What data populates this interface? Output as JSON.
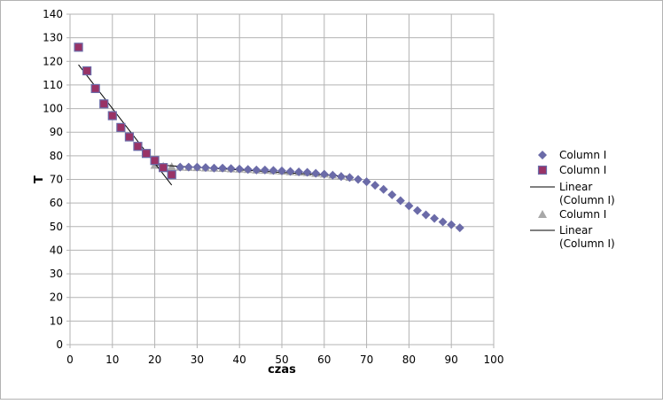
{
  "chart_data": {
    "type": "scatter",
    "xlabel": "czas",
    "ylabel": "T",
    "xlim": [
      0,
      100
    ],
    "ylim": [
      0,
      140
    ],
    "x_ticks": [
      0,
      10,
      20,
      30,
      40,
      50,
      60,
      70,
      80,
      90,
      100
    ],
    "y_ticks": [
      0,
      10,
      20,
      30,
      40,
      50,
      60,
      70,
      80,
      90,
      100,
      110,
      120,
      130,
      140
    ],
    "grid": true,
    "legend_position": "right",
    "colors": {
      "diamond": "#6b6ba8",
      "square_fill": "#993366",
      "square_edge": "#6b6ba8",
      "triangle": "#a8a8a8",
      "line": "#000000",
      "grid": "#b3b3b3"
    },
    "legend": [
      {
        "label": "Column I",
        "marker": "diamond"
      },
      {
        "label": "Column I",
        "marker": "square"
      },
      {
        "label": "Linear\n(Column I)",
        "marker": "line"
      },
      {
        "label": "Column I",
        "marker": "triangle"
      },
      {
        "label": "Linear\n(Column I)",
        "marker": "line"
      }
    ],
    "series": [
      {
        "name": "Column I",
        "marker": "diamond",
        "x": [
          2,
          4,
          6,
          8,
          10,
          12,
          14,
          16,
          18,
          20,
          22,
          24,
          26,
          28,
          30,
          32,
          34,
          36,
          38,
          40,
          42,
          44,
          46,
          48,
          50,
          52,
          54,
          56,
          58,
          60,
          62,
          64,
          66,
          68,
          70,
          72,
          74,
          76,
          78,
          80,
          82,
          84,
          86,
          88,
          90,
          92
        ],
        "y": [
          126,
          116,
          108.5,
          102,
          97,
          92,
          88,
          84,
          81,
          78,
          75,
          72,
          75.2,
          75.2,
          75.2,
          75,
          74.8,
          74.8,
          74.6,
          74.4,
          74.2,
          74,
          74,
          73.8,
          73.6,
          73.4,
          73.2,
          73,
          72.6,
          72.2,
          71.8,
          71.2,
          70.8,
          70,
          69,
          67.5,
          65.8,
          63.5,
          61,
          58.8,
          56.8,
          55,
          53.5,
          52,
          50.8,
          49.5
        ]
      },
      {
        "name": "Column I",
        "marker": "square",
        "x": [
          2,
          4,
          6,
          8,
          10,
          12,
          14,
          16,
          18,
          20,
          22,
          24
        ],
        "y": [
          126,
          116,
          108.5,
          102,
          97,
          92,
          88,
          84,
          81,
          78,
          75,
          72
        ]
      },
      {
        "name": "Linear (Column I)",
        "marker": "line",
        "x": [
          2,
          24
        ],
        "y": [
          118.6,
          67.6
        ]
      },
      {
        "name": "Column I",
        "marker": "triangle",
        "x": [
          20,
          22,
          24,
          26,
          28,
          30,
          32,
          34,
          36,
          38,
          40,
          42,
          44,
          46,
          48,
          50,
          52,
          54,
          56,
          58,
          60,
          62,
          64,
          66
        ],
        "y": [
          76,
          75.6,
          75.4,
          75.2,
          75.1,
          75,
          74.9,
          74.8,
          74.7,
          74.5,
          74.4,
          74.2,
          74,
          73.9,
          73.7,
          73.5,
          73.3,
          73.1,
          72.9,
          72.6,
          72.3,
          71.9,
          71.4,
          70.9
        ]
      },
      {
        "name": "Linear (Column I)",
        "marker": "line",
        "x": [
          20,
          66
        ],
        "y": [
          76.2,
          71.2
        ]
      }
    ]
  }
}
